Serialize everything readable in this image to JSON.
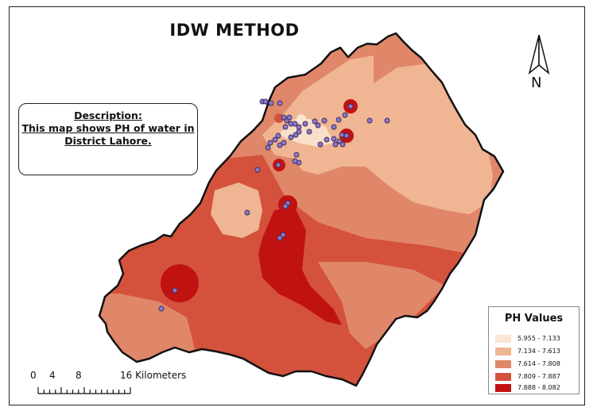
{
  "title": "IDW METHOD",
  "description": {
    "heading": "Description:",
    "lines": [
      "This map shows PH of water in",
      "District Lahore."
    ]
  },
  "north_arrow": {
    "label": "N"
  },
  "legend": {
    "title": "PH Values",
    "items": [
      {
        "range": "5.955 - 7.133",
        "color": "#fbe6d3"
      },
      {
        "range": "7.134 - 7.613",
        "color": "#f0b592"
      },
      {
        "range": "7.614 - 7.808",
        "color": "#e0876a"
      },
      {
        "range": "7.809 - 7.887",
        "color": "#d4523c"
      },
      {
        "range": "7.888 - 8.082",
        "color": "#c11212"
      }
    ]
  },
  "scale_bar": {
    "labels": [
      "0",
      "4",
      "8",
      "16 Kilometers"
    ],
    "values_km": [
      0,
      4,
      8,
      16
    ]
  },
  "sample_points": {
    "fill": "#8b79c8",
    "stroke": "#3a2a5a"
  }
}
